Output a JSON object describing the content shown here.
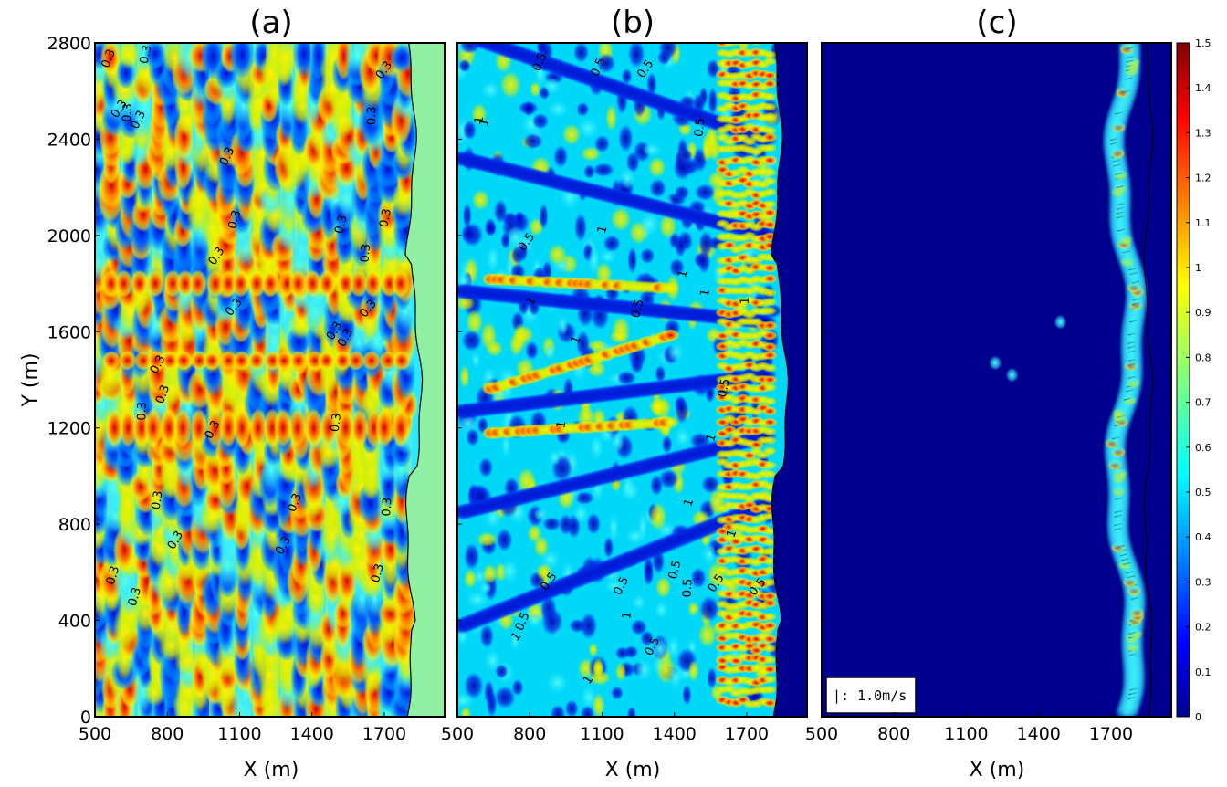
{
  "figure": {
    "panel_titles": [
      "(a)",
      "(b)",
      "(c)"
    ],
    "ylabel": "Y (m)",
    "xlabel": "X (m)"
  },
  "chart_data": [
    {
      "type": "heatmap",
      "panel": "(a)",
      "title": "(a)",
      "xlabel": "X (m)",
      "ylabel": "Y (m)",
      "xlim": [
        500,
        1950
      ],
      "ylim": [
        0,
        2800
      ],
      "xticks": [
        500,
        800,
        1100,
        1400,
        1700
      ],
      "yticks": [
        0,
        400,
        800,
        1200,
        1600,
        2000,
        2400,
        2800
      ],
      "contour_levels": [
        0.3
      ],
      "contour_labels": [
        "0.3",
        "0.3",
        "0.3",
        "0.3",
        "0.3",
        "0.3",
        "0.3",
        "0.3",
        "0.3",
        "0.3",
        "0.3",
        "0.3",
        "0.3",
        "0.3",
        "0.3",
        "0.3",
        "0.3",
        "0.3",
        "0.3",
        "0.3",
        "0.3",
        "0.3",
        "0.3",
        "0.3",
        "0.3",
        "0.3",
        "0.3",
        "0.3",
        "0.3",
        "0.3"
      ],
      "shoreline_x_approx": 1820
    },
    {
      "type": "heatmap",
      "panel": "(b)",
      "title": "(b)",
      "xlabel": "X (m)",
      "xlim": [
        500,
        1950
      ],
      "ylim": [
        0,
        2800
      ],
      "xticks": [
        500,
        800,
        1100,
        1400,
        1700
      ],
      "contour_levels": [
        0.5,
        1
      ],
      "contour_labels": [
        "0.5",
        "0.5",
        "0.5",
        "0.5",
        "0.5",
        "0.5",
        "0.5",
        "0.5",
        "0.5",
        "0.5",
        "0.5",
        "0.5",
        "0.5",
        "0.5",
        "0.5",
        "1",
        "1",
        "1",
        "1",
        "1",
        "1",
        "1",
        "1",
        "1",
        "1",
        "1",
        "1",
        "1",
        "1",
        "1"
      ],
      "shoreline_x_approx": 1830
    },
    {
      "type": "heatmap",
      "panel": "(c)",
      "title": "(c)",
      "xlabel": "X (m)",
      "xlim": [
        500,
        1950
      ],
      "ylim": [
        0,
        2800
      ],
      "xticks": [
        500,
        800,
        1100,
        1400,
        1700
      ],
      "legend": "|: 1.0m/s",
      "colorbar": {
        "min": 0,
        "max": 1.5,
        "ticks": [
          "0",
          "0.1",
          "0.2",
          "0.3",
          "0.4",
          "0.5",
          "0.6",
          "0.7",
          "0.8",
          "0.9",
          "1",
          "1.1",
          "1.2",
          "1.3",
          "1.4",
          "1.5"
        ]
      },
      "shoreline_x_approx": 1850
    }
  ]
}
